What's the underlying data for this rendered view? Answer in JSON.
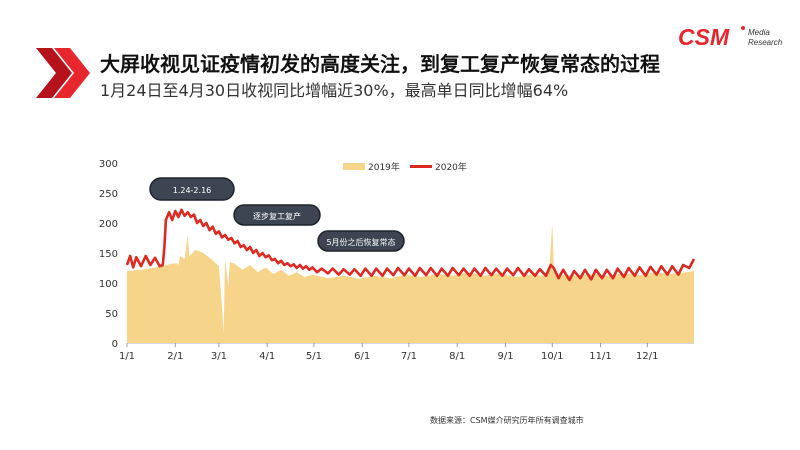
{
  "header": {
    "title": "大屏收视见证疫情初发的高度关注，到复工复产恢复常态的过程",
    "subtitle": "1月24日至4月30日收视同比增幅近30%，最高单日同比增幅64%"
  },
  "logo": {
    "brand": "CSM",
    "tag_line1": "Media",
    "tag_line2": "Research",
    "accent_color": "#e8262d"
  },
  "source_note": "数据来源：CSM媒介研究历年所有调查城市",
  "colors": {
    "series_2019": "#f6d58a",
    "series_2020": "#dc2a22",
    "callout_bg": "#3d4552"
  },
  "chart_data": {
    "type": "area",
    "x_unit": "day of year",
    "ylim": [
      0,
      300
    ],
    "yticks": [
      0,
      50,
      100,
      150,
      200,
      250,
      300
    ],
    "xtick_labels": [
      "1/1",
      "2/1",
      "3/1",
      "4/1",
      "5/1",
      "6/1",
      "7/1",
      "8/1",
      "9/1",
      "10/1",
      "11/1",
      "12/1"
    ],
    "legend_position": "top-center",
    "grid": false,
    "series": [
      {
        "name": "2019年",
        "style": "area",
        "points": [
          [
            1,
            120
          ],
          [
            10,
            122
          ],
          [
            24,
            128
          ],
          [
            29,
            132
          ],
          [
            33,
            133
          ],
          [
            34,
            130
          ],
          [
            35,
            145
          ],
          [
            38,
            140
          ],
          [
            40,
            180
          ],
          [
            41,
            145
          ],
          [
            45,
            155
          ],
          [
            50,
            150
          ],
          [
            55,
            140
          ],
          [
            60,
            128
          ],
          [
            62,
            60
          ],
          [
            63,
            15
          ],
          [
            64,
            140
          ],
          [
            66,
            95
          ],
          [
            67,
            135
          ],
          [
            70,
            132
          ],
          [
            75,
            122
          ],
          [
            80,
            130
          ],
          [
            85,
            118
          ],
          [
            90,
            126
          ],
          [
            95,
            115
          ],
          [
            100,
            122
          ],
          [
            105,
            112
          ],
          [
            110,
            118
          ],
          [
            115,
            110
          ],
          [
            120,
            114
          ],
          [
            130,
            108
          ],
          [
            140,
            112
          ],
          [
            150,
            107
          ],
          [
            160,
            112
          ],
          [
            170,
            108
          ],
          [
            180,
            114
          ],
          [
            190,
            110
          ],
          [
            200,
            115
          ],
          [
            210,
            112
          ],
          [
            220,
            118
          ],
          [
            230,
            112
          ],
          [
            240,
            116
          ],
          [
            250,
            110
          ],
          [
            260,
            114
          ],
          [
            270,
            112
          ],
          [
            272,
            118
          ],
          [
            274,
            200
          ],
          [
            275,
            125
          ],
          [
            276,
            114
          ],
          [
            285,
            113
          ],
          [
            290,
            112
          ],
          [
            300,
            115
          ],
          [
            310,
            112
          ],
          [
            320,
            116
          ],
          [
            330,
            113
          ],
          [
            340,
            118
          ],
          [
            350,
            115
          ],
          [
            360,
            118
          ],
          [
            365,
            120
          ]
        ]
      },
      {
        "name": "2020年",
        "style": "line",
        "points": [
          [
            1,
            130
          ],
          [
            3,
            145
          ],
          [
            5,
            126
          ],
          [
            7,
            143
          ],
          [
            10,
            128
          ],
          [
            13,
            145
          ],
          [
            16,
            130
          ],
          [
            19,
            142
          ],
          [
            22,
            128
          ],
          [
            24,
            130
          ],
          [
            25,
            160
          ],
          [
            26,
            205
          ],
          [
            28,
            218
          ],
          [
            30,
            205
          ],
          [
            32,
            220
          ],
          [
            34,
            210
          ],
          [
            36,
            222
          ],
          [
            38,
            212
          ],
          [
            40,
            218
          ],
          [
            42,
            210
          ],
          [
            44,
            214
          ],
          [
            46,
            200
          ],
          [
            48,
            205
          ],
          [
            50,
            195
          ],
          [
            52,
            200
          ],
          [
            54,
            188
          ],
          [
            56,
            194
          ],
          [
            58,
            182
          ],
          [
            60,
            186
          ],
          [
            62,
            176
          ],
          [
            64,
            180
          ],
          [
            66,
            172
          ],
          [
            68,
            175
          ],
          [
            70,
            166
          ],
          [
            72,
            170
          ],
          [
            74,
            160
          ],
          [
            76,
            163
          ],
          [
            78,
            155
          ],
          [
            80,
            160
          ],
          [
            82,
            150
          ],
          [
            84,
            155
          ],
          [
            86,
            145
          ],
          [
            88,
            150
          ],
          [
            90,
            143
          ],
          [
            92,
            146
          ],
          [
            94,
            138
          ],
          [
            96,
            140
          ],
          [
            98,
            133
          ],
          [
            100,
            137
          ],
          [
            102,
            130
          ],
          [
            104,
            133
          ],
          [
            106,
            128
          ],
          [
            108,
            131
          ],
          [
            110,
            125
          ],
          [
            112,
            130
          ],
          [
            114,
            124
          ],
          [
            116,
            128
          ],
          [
            118,
            122
          ],
          [
            120,
            126
          ],
          [
            123,
            118
          ],
          [
            126,
            124
          ],
          [
            130,
            116
          ],
          [
            133,
            124
          ],
          [
            137,
            114
          ],
          [
            140,
            123
          ],
          [
            144,
            114
          ],
          [
            147,
            123
          ],
          [
            151,
            112
          ],
          [
            154,
            124
          ],
          [
            158,
            112
          ],
          [
            161,
            124
          ],
          [
            165,
            112
          ],
          [
            168,
            124
          ],
          [
            172,
            113
          ],
          [
            175,
            125
          ],
          [
            179,
            113
          ],
          [
            182,
            124
          ],
          [
            186,
            112
          ],
          [
            189,
            125
          ],
          [
            193,
            113
          ],
          [
            196,
            125
          ],
          [
            200,
            112
          ],
          [
            203,
            124
          ],
          [
            207,
            112
          ],
          [
            210,
            125
          ],
          [
            214,
            113
          ],
          [
            217,
            124
          ],
          [
            221,
            112
          ],
          [
            224,
            124
          ],
          [
            228,
            112
          ],
          [
            231,
            125
          ],
          [
            235,
            113
          ],
          [
            238,
            124
          ],
          [
            242,
            112
          ],
          [
            245,
            124
          ],
          [
            249,
            113
          ],
          [
            252,
            125
          ],
          [
            256,
            112
          ],
          [
            259,
            123
          ],
          [
            263,
            112
          ],
          [
            266,
            123
          ],
          [
            270,
            112
          ],
          [
            273,
            130
          ],
          [
            275,
            125
          ],
          [
            278,
            108
          ],
          [
            281,
            122
          ],
          [
            285,
            105
          ],
          [
            288,
            120
          ],
          [
            292,
            108
          ],
          [
            295,
            122
          ],
          [
            299,
            106
          ],
          [
            302,
            122
          ],
          [
            306,
            108
          ],
          [
            309,
            122
          ],
          [
            313,
            108
          ],
          [
            316,
            124
          ],
          [
            320,
            110
          ],
          [
            323,
            125
          ],
          [
            327,
            112
          ],
          [
            330,
            126
          ],
          [
            334,
            112
          ],
          [
            337,
            127
          ],
          [
            341,
            114
          ],
          [
            344,
            128
          ],
          [
            348,
            114
          ],
          [
            351,
            128
          ],
          [
            355,
            114
          ],
          [
            358,
            130
          ],
          [
            362,
            125
          ],
          [
            365,
            140
          ]
        ]
      }
    ],
    "annotations": [
      {
        "text": "1.24-2.16"
      },
      {
        "text": "逐步复工复产"
      },
      {
        "text": "5月份之后恢复常态"
      }
    ]
  }
}
